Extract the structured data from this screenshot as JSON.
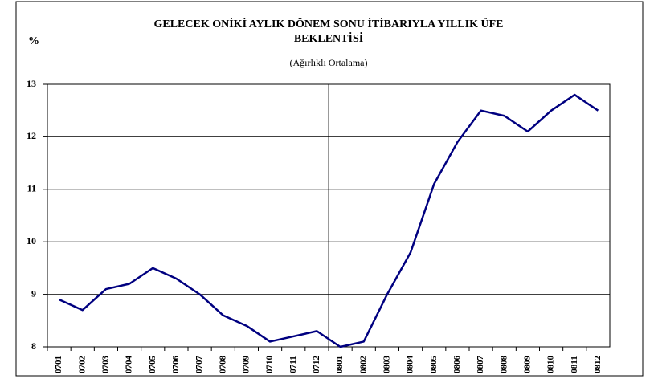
{
  "chart_data": {
    "type": "line",
    "title": [
      "GELECEK ONİKİ AYLIK DÖNEM SONU İTİBARIYLA YILLIK ÜFE",
      "BEKLENTİSİ"
    ],
    "subtitle": "(Ağırlıklı Ortalama)",
    "y_label": "%",
    "categories": [
      "0701",
      "0702",
      "0703",
      "0704",
      "0705",
      "0706",
      "0707",
      "0708",
      "0709",
      "0710",
      "0711",
      "0712",
      "0801",
      "0802",
      "0803",
      "0804",
      "0805",
      "0806",
      "0807",
      "0808",
      "0809",
      "0810",
      "0811",
      "0812"
    ],
    "series": [
      {
        "color": "#000080",
        "values": [
          8.9,
          8.7,
          9.1,
          9.2,
          9.5,
          9.3,
          9.0,
          8.6,
          8.4,
          8.1,
          8.2,
          8.3,
          8.0,
          8.1,
          9.0,
          9.8,
          11.1,
          11.9,
          12.5,
          12.4,
          12.1,
          12.5,
          12.8,
          12.5
        ]
      }
    ],
    "ylim": [
      8,
      13
    ],
    "yticks": [
      8,
      9,
      10,
      11,
      12,
      13
    ],
    "grid": true
  }
}
